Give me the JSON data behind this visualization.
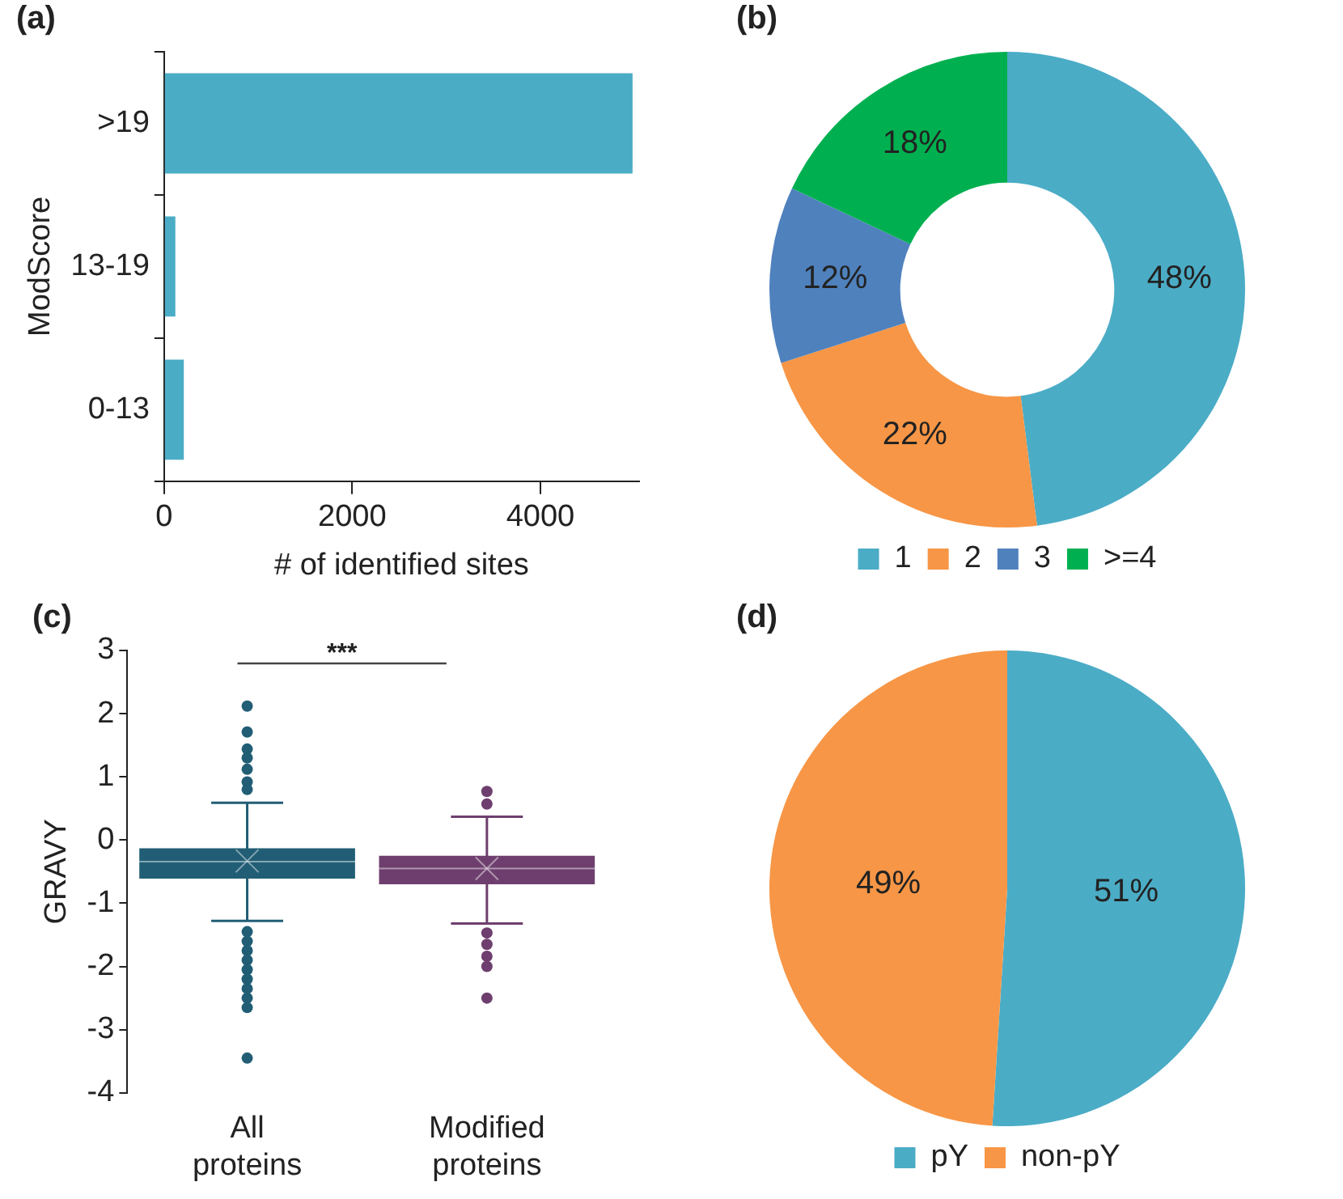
{
  "chart_data": [
    {
      "type": "bar",
      "title": "(a)",
      "orientation": "horizontal",
      "categories": [
        ">19",
        "13-19",
        "0-13"
      ],
      "values": [
        4980,
        120,
        210
      ],
      "color": "#4bacc6",
      "xlim": [
        0,
        5050
      ],
      "xticks": [
        0,
        2000,
        4000
      ],
      "xlabel": "# of identified sites",
      "ylabel": "ModScore",
      "grid": false,
      "legend": false
    },
    {
      "type": "donut",
      "title": "(b)",
      "categories": [
        "1",
        "2",
        "3",
        ">=4"
      ],
      "values": [
        48,
        22,
        12,
        18
      ],
      "colors": [
        "#4bacc6",
        "#f79646",
        "#4f81bd",
        "#00b050"
      ],
      "value_labels": [
        "48%",
        "22%",
        "12%",
        "18%"
      ],
      "legend": "bottom"
    },
    {
      "type": "box",
      "title": "(c)",
      "categories": [
        "All proteins",
        "Modified proteins"
      ],
      "colors": [
        "#215e75",
        "#6e3f6e"
      ],
      "boxes": [
        {
          "low": -1.28,
          "q1": -0.61,
          "median": -0.34,
          "q3": -0.13,
          "high": 0.59,
          "mean": -0.33,
          "outliers": [
            2.12,
            1.71,
            1.44,
            1.3,
            1.12,
            0.92,
            0.8,
            -1.45,
            -1.6,
            -1.75,
            -1.9,
            -2.05,
            -2.2,
            -2.35,
            -2.5,
            -2.65,
            -3.45
          ]
        },
        {
          "low": -1.32,
          "q1": -0.7,
          "median": -0.45,
          "q3": -0.25,
          "high": 0.37,
          "mean": -0.45,
          "outliers": [
            0.77,
            0.57,
            -1.47,
            -1.65,
            -1.84,
            -2.0,
            -2.5
          ]
        }
      ],
      "ylim": [
        -4,
        3
      ],
      "yticks": [
        -4,
        -3,
        -2,
        -1,
        0,
        1,
        2,
        3
      ],
      "ylabel": "GRAVY",
      "annotations": [
        "***"
      ],
      "grid": false,
      "legend": false
    },
    {
      "type": "pie",
      "title": "(d)",
      "categories": [
        "pY",
        "non-pY"
      ],
      "values": [
        51,
        49
      ],
      "colors": [
        "#4bacc6",
        "#f79646"
      ],
      "value_labels": [
        "51%",
        "49%"
      ],
      "legend": "bottom"
    }
  ]
}
